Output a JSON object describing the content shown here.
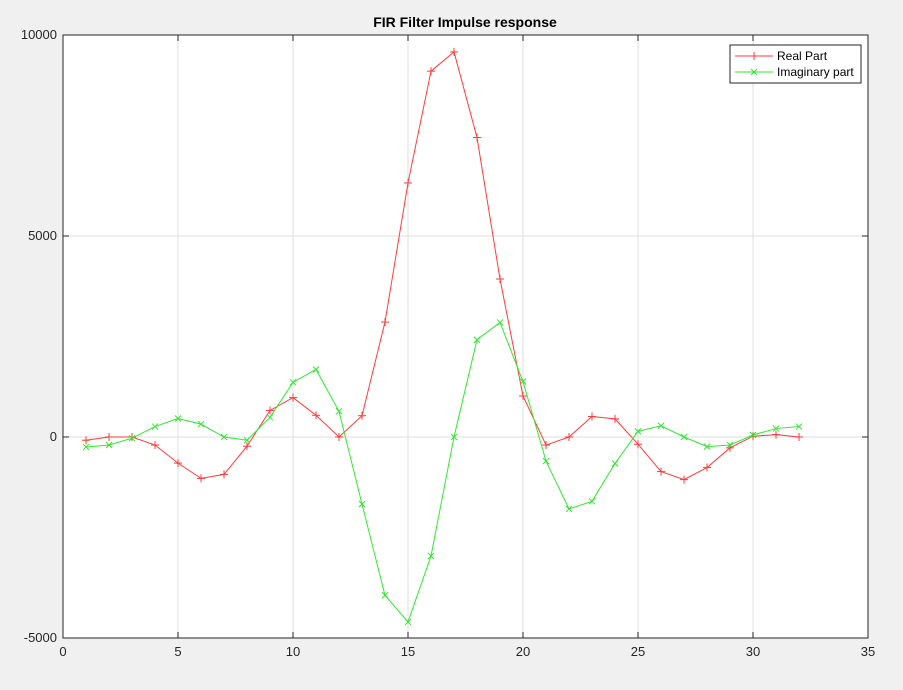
{
  "chart_data": {
    "type": "line",
    "title": "FIR Filter Impulse response",
    "xlabel": "",
    "ylabel": "",
    "xlim": [
      0,
      35
    ],
    "ylim": [
      -5000,
      10000
    ],
    "xticks": [
      0,
      5,
      10,
      15,
      20,
      25,
      30,
      35
    ],
    "yticks": [
      -5000,
      0,
      5000,
      10000
    ],
    "grid": true,
    "legend_position": "top-right",
    "x": [
      1,
      2,
      3,
      4,
      5,
      6,
      7,
      8,
      9,
      10,
      11,
      12,
      13,
      14,
      15,
      16,
      17,
      18,
      19,
      20,
      21,
      22,
      23,
      24,
      25,
      26,
      27,
      28,
      29,
      30,
      31,
      32
    ],
    "series": [
      {
        "name": "Real Part",
        "color": "#ff3b3b",
        "marker": "+",
        "values": [
          -80,
          0,
          0,
          -200,
          -650,
          -1030,
          -930,
          -230,
          660,
          980,
          540,
          0,
          530,
          2860,
          6320,
          9100,
          9580,
          7450,
          3930,
          1020,
          -200,
          0,
          510,
          450,
          -180,
          -860,
          -1060,
          -760,
          -270,
          20,
          60,
          0
        ]
      },
      {
        "name": "Imaginary part",
        "color": "#33e633",
        "marker": "x",
        "values": [
          -250,
          -200,
          -30,
          260,
          460,
          320,
          0,
          -80,
          490,
          1360,
          1680,
          640,
          -1670,
          -3940,
          -4600,
          -2960,
          0,
          2420,
          2850,
          1380,
          -600,
          -1790,
          -1600,
          -660,
          140,
          280,
          0,
          -240,
          -200,
          50,
          210,
          260
        ]
      }
    ]
  }
}
